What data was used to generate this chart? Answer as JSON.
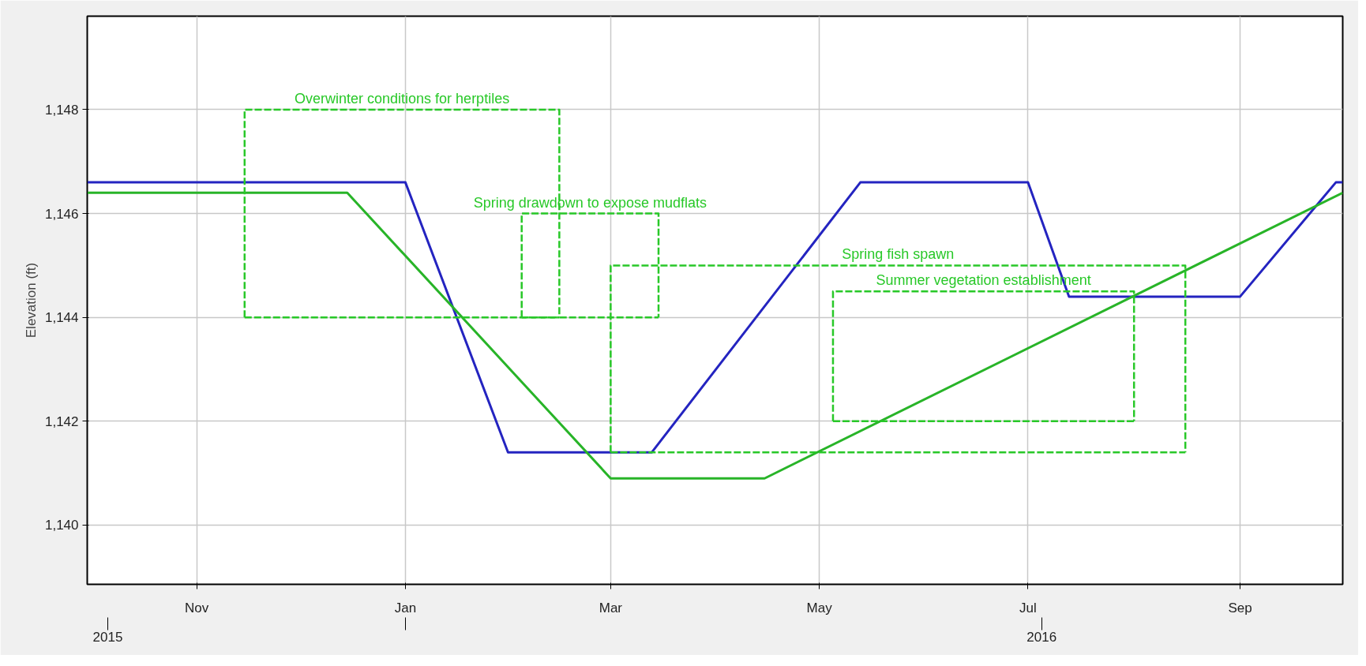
{
  "chart_data": {
    "type": "line",
    "ylabel": "Elevation (ft)",
    "xlim": [
      "2015-09-30",
      "2016-10-01"
    ],
    "ylim": [
      1138.86,
      1149.8
    ],
    "xticks": [
      {
        "value": "2015-11-01",
        "label": "Nov"
      },
      {
        "value": "2016-01-01",
        "label": "Jan"
      },
      {
        "value": "2016-03-01",
        "label": "Mar"
      },
      {
        "value": "2016-05-01",
        "label": "May"
      },
      {
        "value": "2016-07-01",
        "label": "Jul"
      },
      {
        "value": "2016-09-01",
        "label": "Sep"
      }
    ],
    "x2lim": [
      "2015-09-30",
      "2016-10-01"
    ],
    "x2ticks": [
      {
        "value": "2015-10-06",
        "label": "2015"
      },
      {
        "value": "2016-01-01",
        "label": null
      },
      {
        "value": "2016-07-05",
        "label": "2016"
      }
    ],
    "yticks": [
      {
        "value": 1140,
        "label": "1,140"
      },
      {
        "value": 1142,
        "label": "1,142"
      },
      {
        "value": 1144,
        "label": "1,144"
      },
      {
        "value": 1146,
        "label": "1,146"
      },
      {
        "value": 1148,
        "label": "1,148"
      }
    ],
    "grid": true,
    "marker": "none",
    "line_style": "solid",
    "series": [
      {
        "color": "#2424c0",
        "x": [
          "2015-09-30",
          "2016-01-01",
          "2016-01-31",
          "2016-03-13",
          "2016-05-13",
          "2016-07-01",
          "2016-07-13",
          "2016-09-01",
          "2016-09-29",
          "2016-10-01"
        ],
        "values": [
          1146.6,
          1146.6,
          1141.4,
          1141.4,
          1146.6,
          1146.6,
          1144.4,
          1144.4,
          1146.6,
          1146.6
        ]
      },
      {
        "color": "#28b428",
        "x": [
          "2015-09-30",
          "2015-12-15",
          "2016-03-01",
          "2016-04-15",
          "2016-10-01"
        ],
        "values": [
          1146.4,
          1146.4,
          1140.9,
          1140.9,
          1146.4
        ]
      },
      {
        "name": "Overwinter conditions for herptiles",
        "color": "#28c828",
        "line_style": "dashed",
        "x": [
          "2015-11-15",
          "2015-11-15",
          "2016-02-15",
          "2016-02-15"
        ],
        "values": [
          1144,
          1148,
          1148,
          1144
        ]
      },
      {
        "name": "Spring drawdown to expose mudflats",
        "color": "#28c828",
        "line_style": "dashed",
        "x": [
          "2016-02-04",
          "2016-02-04",
          "2016-03-15",
          "2016-03-15"
        ],
        "values": [
          1144,
          1146,
          1146,
          1144
        ]
      },
      {
        "name": "Spring fish spawn",
        "color": "#28c828",
        "line_style": "dashed",
        "x": [
          "2016-03-01",
          "2016-03-01",
          "2016-08-16",
          "2016-08-16"
        ],
        "values": [
          1141.4,
          1145,
          1145,
          1141.4
        ]
      },
      {
        "name": "Summer vegetation establishment",
        "color": "#28c828",
        "line_style": "dashed",
        "x": [
          "2016-05-05",
          "2016-05-05",
          "2016-08-01",
          "2016-08-01"
        ],
        "values": [
          1142,
          1144.5,
          1144.5,
          1142
        ]
      },
      {
        "color": "#28c828",
        "line_style": "dashed",
        "x": [
          "2015-11-15",
          "2016-02-15"
        ],
        "values": [
          1144,
          1144
        ]
      },
      {
        "color": "#28c828",
        "line_style": "dashed",
        "x": [
          "2016-02-04",
          "2016-03-15"
        ],
        "values": [
          1144,
          1144
        ]
      },
      {
        "color": "#28c828",
        "line_style": "dashed",
        "x": [
          "2016-03-01",
          "2016-08-16"
        ],
        "values": [
          1141.4,
          1141.4
        ]
      },
      {
        "color": "#28c828",
        "line_style": "dashed",
        "x": [
          "2016-05-05",
          "2016-08-01"
        ],
        "values": [
          1142,
          1142
        ]
      }
    ]
  }
}
